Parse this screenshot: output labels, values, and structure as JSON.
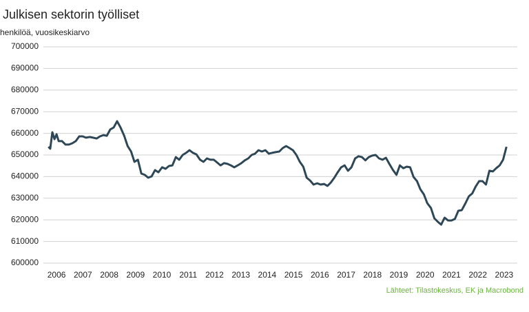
{
  "chart_data": {
    "type": "line",
    "title": "Julkisen sektorin työlliset",
    "subtitle": "henkilöä, vuosikeskiarvo",
    "source": "Lähteet: Tilastokeskus, EK ja Macrobond",
    "xlim": [
      2006.0,
      2024.0
    ],
    "xticks": [
      {
        "value": 2006.5,
        "label": "2006"
      },
      {
        "value": 2007.5,
        "label": "2007"
      },
      {
        "value": 2008.5,
        "label": "2008"
      },
      {
        "value": 2009.5,
        "label": "2009"
      },
      {
        "value": 2010.5,
        "label": "2010"
      },
      {
        "value": 2011.5,
        "label": "2011"
      },
      {
        "value": 2012.5,
        "label": "2012"
      },
      {
        "value": 2013.5,
        "label": "2013"
      },
      {
        "value": 2014.5,
        "label": "2014"
      },
      {
        "value": 2015.5,
        "label": "2015"
      },
      {
        "value": 2016.5,
        "label": "2016"
      },
      {
        "value": 2017.5,
        "label": "2017"
      },
      {
        "value": 2018.5,
        "label": "2018"
      },
      {
        "value": 2019.5,
        "label": "2019"
      },
      {
        "value": 2020.5,
        "label": "2020"
      },
      {
        "value": 2021.5,
        "label": "2021"
      },
      {
        "value": 2022.5,
        "label": "2022"
      },
      {
        "value": 2023.5,
        "label": "2023"
      }
    ],
    "ylim": [
      600000,
      700000
    ],
    "yticks": [
      600000,
      610000,
      620000,
      630000,
      640000,
      650000,
      660000,
      670000,
      680000,
      690000,
      700000
    ],
    "grid": true,
    "series": [
      {
        "name": "Julkisen sektorin työlliset",
        "color": "#2e4756",
        "x": [
          2006.19,
          2006.26,
          2006.34,
          2006.42,
          2006.5,
          2006.58,
          2006.71,
          2006.84,
          2006.97,
          2007.1,
          2007.23,
          2007.36,
          2007.49,
          2007.62,
          2007.76,
          2007.89,
          2008.02,
          2008.15,
          2008.28,
          2008.41,
          2008.54,
          2008.67,
          2008.8,
          2008.93,
          2009.07,
          2009.2,
          2009.33,
          2009.46,
          2009.59,
          2009.72,
          2009.85,
          2009.98,
          2010.11,
          2010.24,
          2010.37,
          2010.51,
          2010.64,
          2010.77,
          2010.9,
          2011.03,
          2011.16,
          2011.29,
          2011.42,
          2011.55,
          2011.68,
          2011.81,
          2011.95,
          2012.08,
          2012.21,
          2012.34,
          2012.47,
          2012.6,
          2012.73,
          2012.86,
          2012.99,
          2013.12,
          2013.25,
          2013.38,
          2013.52,
          2013.65,
          2013.78,
          2013.91,
          2014.04,
          2014.17,
          2014.3,
          2014.43,
          2014.56,
          2014.69,
          2014.82,
          2014.96,
          2015.09,
          2015.22,
          2015.35,
          2015.48,
          2015.61,
          2015.74,
          2015.87,
          2016.0,
          2016.13,
          2016.26,
          2016.4,
          2016.53,
          2016.66,
          2016.79,
          2016.92,
          2017.05,
          2017.18,
          2017.31,
          2017.44,
          2017.57,
          2017.7,
          2017.84,
          2017.97,
          2018.1,
          2018.23,
          2018.36,
          2018.49,
          2018.62,
          2018.75,
          2018.88,
          2019.01,
          2019.14,
          2019.28,
          2019.41,
          2019.54,
          2019.67,
          2019.8,
          2019.93,
          2020.06,
          2020.19,
          2020.32,
          2020.45,
          2020.58,
          2020.72,
          2020.85,
          2020.98,
          2021.11,
          2021.24,
          2021.37,
          2021.5,
          2021.63,
          2021.76,
          2021.89,
          2022.02,
          2022.16,
          2022.29,
          2022.42,
          2022.55,
          2022.68,
          2022.81,
          2022.94,
          2023.07,
          2023.2,
          2023.33,
          2023.46,
          2023.59
        ],
        "values": [
          653800,
          652900,
          660500,
          657300,
          659600,
          656400,
          656400,
          654800,
          654800,
          655400,
          656400,
          658600,
          658600,
          658000,
          658300,
          658000,
          657600,
          658600,
          659200,
          658900,
          661800,
          662700,
          665600,
          662700,
          658900,
          654100,
          651600,
          646800,
          647800,
          641400,
          640800,
          639500,
          640100,
          643000,
          642000,
          644300,
          643600,
          644900,
          645200,
          649000,
          647800,
          650000,
          651000,
          652200,
          651000,
          650300,
          647800,
          646800,
          648400,
          647800,
          647800,
          646500,
          645200,
          646200,
          645900,
          645200,
          644300,
          645200,
          646200,
          647500,
          648400,
          650000,
          650600,
          652200,
          651600,
          652200,
          650600,
          651000,
          651300,
          651600,
          653200,
          654100,
          653200,
          652200,
          650000,
          646800,
          644600,
          639500,
          638200,
          636300,
          636900,
          636300,
          636600,
          635700,
          637300,
          639500,
          642000,
          644300,
          645200,
          642700,
          644300,
          648400,
          649400,
          649000,
          647500,
          649000,
          649700,
          650000,
          648400,
          647800,
          648700,
          645900,
          643000,
          640800,
          645200,
          643900,
          644600,
          644300,
          639800,
          637900,
          634100,
          631800,
          627700,
          625500,
          620700,
          619100,
          617800,
          621000,
          619700,
          619700,
          620400,
          624200,
          624500,
          627400,
          630900,
          632200,
          635400,
          637900,
          637900,
          636300,
          642700,
          642400,
          643900,
          645200,
          647800,
          653800
        ]
      }
    ]
  }
}
